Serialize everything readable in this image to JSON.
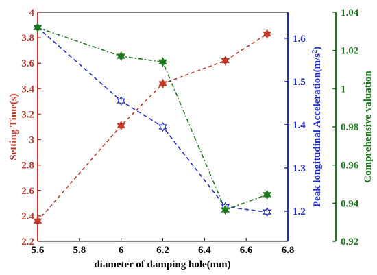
{
  "chart_data": {
    "type": "line",
    "x": [
      5.6,
      6.0,
      6.2,
      6.5,
      6.7
    ],
    "xlabel": "diameter of damping hole(mm)",
    "xlim": [
      5.6,
      6.8
    ],
    "xticks": [
      "5.6",
      "5.8",
      "6",
      "6.2",
      "6.4",
      "6.6",
      "6.8"
    ],
    "axes": [
      {
        "id": "left",
        "label": "Setting Time(s)",
        "color": "#c0392b",
        "ylim": [
          2.2,
          4.0
        ],
        "ticks": [
          "2.2",
          "2.4",
          "2.6",
          "2.8",
          "3",
          "3.2",
          "3.4",
          "3.6",
          "3.8",
          "4"
        ]
      },
      {
        "id": "right1",
        "label": "Peak longitudinal Acceleration(m/s^2)",
        "color": "#1f2bd6",
        "ylim": [
          1.13,
          1.66
        ],
        "ticks": [
          "1.2",
          "1.3",
          "1.4",
          "1.5",
          "1.6"
        ]
      },
      {
        "id": "right2",
        "label": "Comprehensive valuation",
        "color": "#1e7a1e",
        "ylim": [
          0.92,
          1.04
        ],
        "ticks": [
          "0.92",
          "0.94",
          "0.96",
          "0.98",
          "1",
          "1.02",
          "1.04"
        ]
      }
    ],
    "series": [
      {
        "axis": "left",
        "values": [
          2.36,
          3.11,
          3.44,
          3.62,
          3.83
        ],
        "color": "#c0392b",
        "dash": "5,4",
        "marker": "hexagram"
      },
      {
        "axis": "right1",
        "values": [
          1.625,
          1.455,
          1.395,
          1.21,
          1.198
        ],
        "color": "#1f2bd6",
        "dash": "6,4",
        "marker": "hexagram-hollow"
      },
      {
        "axis": "right2",
        "values": [
          1.032,
          1.017,
          1.014,
          0.9365,
          0.9445
        ],
        "color": "#1e7a1e",
        "dash": "6,3,2,3",
        "marker": "hexagram"
      }
    ]
  }
}
